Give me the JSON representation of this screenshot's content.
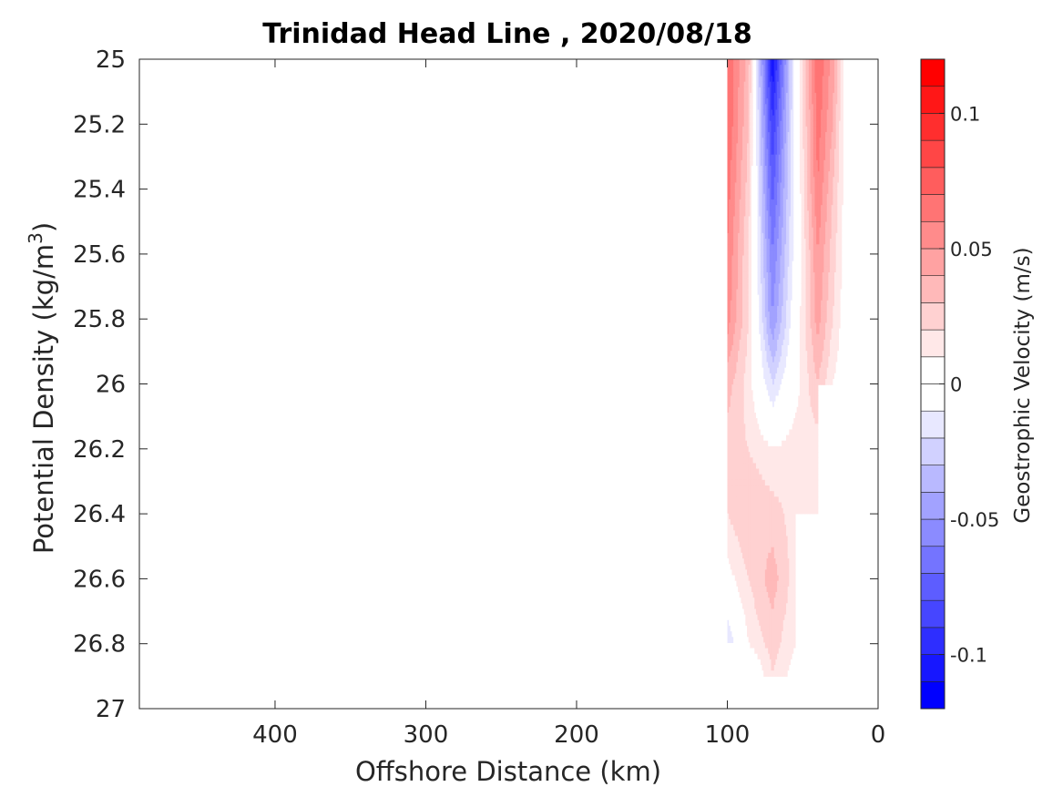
{
  "chart_data": {
    "type": "heatmap",
    "title": "Trinidad Head Line , 2020/08/18",
    "xlabel": "Offshore Distance (km)",
    "ylabel": "Potential Density (kg/m³)",
    "xlim": [
      490,
      0
    ],
    "x_reversed": true,
    "ylim": [
      27,
      25
    ],
    "y_reversed": true,
    "x_ticks": [
      400,
      300,
      200,
      100,
      0
    ],
    "y_ticks": [
      25,
      25.2,
      25.4,
      25.6,
      25.8,
      26,
      26.2,
      26.4,
      26.6,
      26.8,
      27
    ],
    "grid": false,
    "colorbar": {
      "label": "Geostrophic Velocity (m/s)",
      "range": [
        -0.12,
        0.12
      ],
      "step": 0.01,
      "ticks": [
        0.1,
        0.05,
        0,
        -0.05,
        -0.1
      ],
      "tick_labels": [
        "0.1",
        "0.05",
        "0",
        "-0.05",
        "-0.1"
      ],
      "positive_color": "#ff0000",
      "negative_color": "#0000ff",
      "zero_color": "#ffffff"
    },
    "station_distances_km": [
      100,
      86,
      70,
      55,
      40,
      30,
      20
    ],
    "density_levels": [
      25,
      25.2,
      25.4,
      25.6,
      25.8,
      26,
      26.2,
      26.4,
      26.6,
      26.8,
      26.9
    ],
    "velocity": [
      [
        0.07,
        0.035,
        -0.11,
        -0.005,
        0.07,
        0.045,
        -0.005
      ],
      [
        0.07,
        0.03,
        -0.09,
        -0.005,
        0.065,
        0.04,
        -0.005
      ],
      [
        0.065,
        0.025,
        -0.075,
        -0.005,
        0.06,
        0.03,
        0.0
      ],
      [
        0.06,
        0.02,
        -0.06,
        -0.005,
        0.05,
        0.025,
        0.0
      ],
      [
        0.055,
        0.02,
        -0.05,
        0.0,
        0.045,
        0.02,
        0.0
      ],
      [
        0.035,
        0.015,
        -0.02,
        0.005,
        0.03,
        0.01,
        0.0
      ],
      [
        0.025,
        0.02,
        0.01,
        0.015,
        0.015,
        null,
        null
      ],
      [
        0.02,
        0.03,
        0.025,
        0.015,
        0.01,
        null,
        null
      ],
      [
        0.005,
        0.02,
        0.035,
        0.015,
        null,
        null,
        null
      ],
      [
        -0.02,
        0.01,
        0.025,
        0.01,
        null,
        null,
        null
      ],
      [
        null,
        -0.01,
        0.02,
        0.005,
        null,
        null,
        null
      ]
    ]
  }
}
